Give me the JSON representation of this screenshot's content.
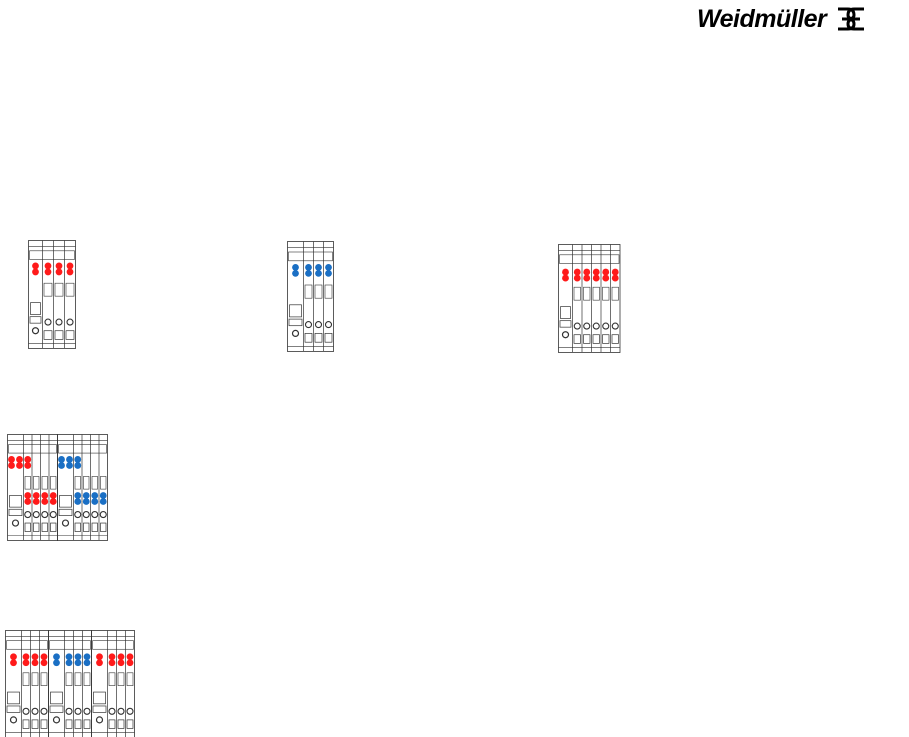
{
  "header": {
    "logo_text": "Weidmüller",
    "logo_icon": "weidmuller-crossed-w-mark"
  },
  "colors": {
    "red": "#ff1a1a",
    "blue": "#1a6fc4",
    "line": "#333333"
  },
  "drawings": [
    {
      "id": "terminal-block-1",
      "colors": [
        "red"
      ]
    },
    {
      "id": "terminal-block-2",
      "colors": [
        "blue"
      ]
    },
    {
      "id": "terminal-block-3",
      "colors": [
        "red"
      ]
    },
    {
      "id": "terminal-block-4",
      "colors": [
        "red",
        "blue"
      ]
    },
    {
      "id": "terminal-block-5",
      "colors": [
        "red",
        "blue",
        "red"
      ]
    }
  ]
}
